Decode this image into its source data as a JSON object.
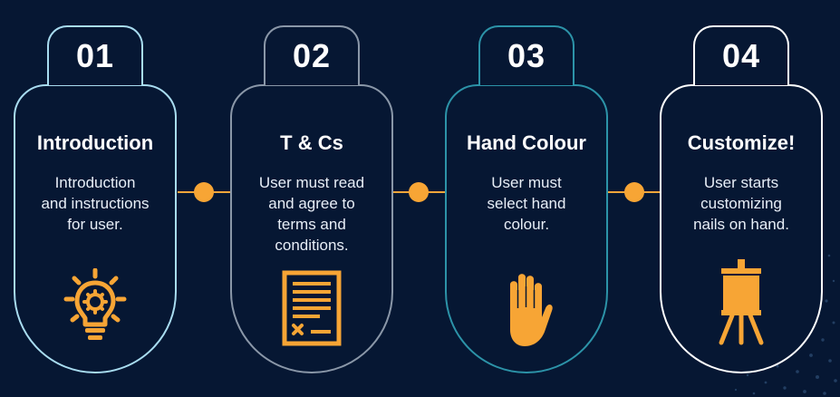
{
  "colors": {
    "background": "#061733",
    "accent": "#f7a535",
    "step_borders": [
      "#a8dcf0",
      "#8a97a8",
      "#2c93a8",
      "#ffffff"
    ]
  },
  "steps": [
    {
      "number": "01",
      "title": "Introduction",
      "lines": [
        "Introduction",
        "and instructions",
        "for user."
      ],
      "icon": "lightbulb-gear-icon"
    },
    {
      "number": "02",
      "title": "T & Cs",
      "lines": [
        "User must read",
        "and agree to",
        "terms and",
        "conditions."
      ],
      "icon": "document-signature-icon"
    },
    {
      "number": "03",
      "title": "Hand Colour",
      "lines": [
        "User must",
        "select hand",
        "colour."
      ],
      "icon": "hand-icon"
    },
    {
      "number": "04",
      "title": "Customize!",
      "lines": [
        "User starts",
        "customizing",
        "nails on hand."
      ],
      "icon": "easel-icon"
    }
  ]
}
